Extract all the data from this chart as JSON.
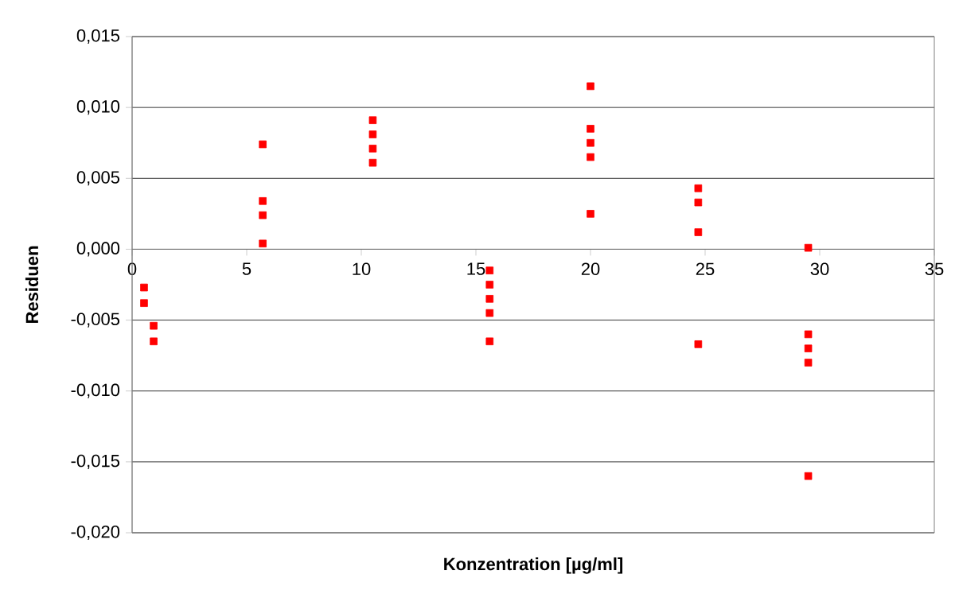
{
  "chart_data": {
    "type": "scatter",
    "xlabel": "Konzentration [µg/ml]",
    "ylabel": "Residuen",
    "x": [
      0.52,
      0.52,
      0.94,
      0.94,
      5.7,
      5.7,
      5.7,
      5.7,
      10.5,
      10.5,
      10.5,
      10.5,
      15.6,
      15.6,
      15.6,
      15.6,
      15.6,
      20.0,
      20.0,
      20.0,
      20.0,
      20.0,
      24.7,
      24.7,
      24.7,
      24.7,
      29.5,
      29.5,
      29.5,
      29.5,
      29.5
    ],
    "values": [
      -0.0027,
      -0.0038,
      -0.0054,
      -0.0065,
      0.0074,
      0.0034,
      0.0024,
      0.0004,
      0.0091,
      0.0081,
      0.0071,
      0.0061,
      -0.0015,
      -0.0025,
      -0.0035,
      -0.0045,
      -0.0065,
      0.0115,
      0.0085,
      0.0075,
      0.0065,
      0.0025,
      0.0043,
      0.0033,
      0.0012,
      -0.0067,
      0.0001,
      -0.006,
      -0.007,
      -0.008,
      -0.016
    ],
    "color": "#ff0000",
    "marker": "square",
    "grid": "y",
    "xlim": [
      0,
      35
    ],
    "ylim": [
      -0.02,
      0.015
    ],
    "xticks": [
      0,
      5,
      10,
      15,
      20,
      25,
      30,
      35
    ],
    "yticks": [
      {
        "value": -0.02,
        "label": "-0,020"
      },
      {
        "value": -0.015,
        "label": "-0,015"
      },
      {
        "value": -0.01,
        "label": "-0,010"
      },
      {
        "value": -0.005,
        "label": "-0,005"
      },
      {
        "value": 0,
        "label": "0,000"
      },
      {
        "value": 0.005,
        "label": "0,005"
      },
      {
        "value": 0.01,
        "label": "0,010"
      },
      {
        "value": 0.015,
        "label": "0,015"
      }
    ]
  }
}
